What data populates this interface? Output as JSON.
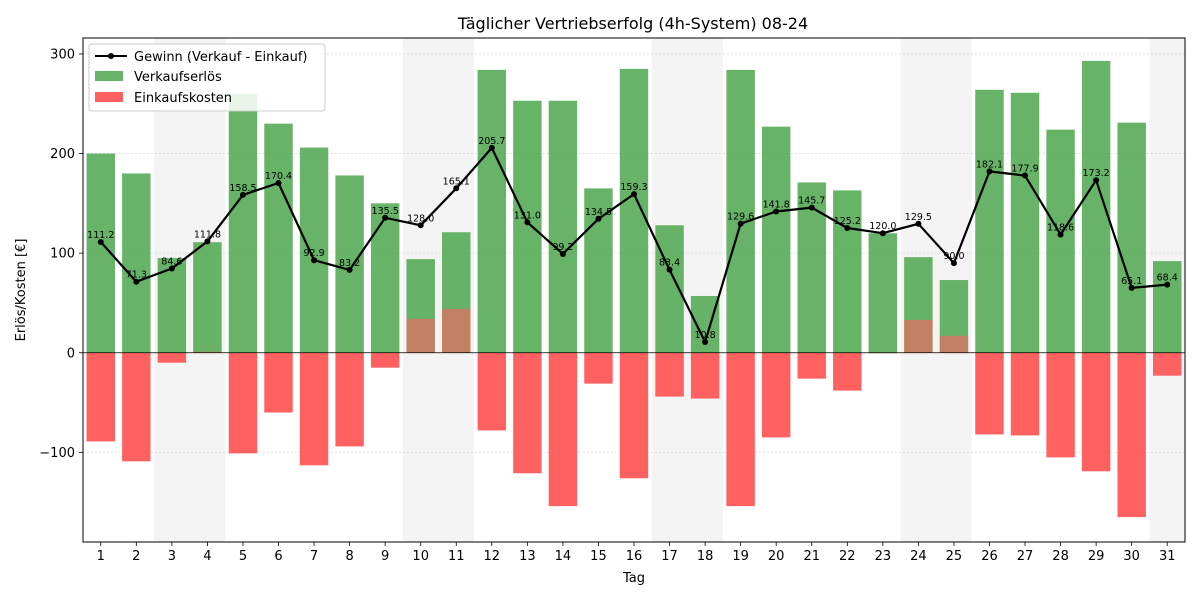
{
  "chart_data": {
    "type": "bar",
    "title": "Täglicher Vertriebserfolg (4h-System) 08-24",
    "xlabel": "Tag",
    "ylabel": "Erlös/Kosten [€]",
    "ylim": [
      -190,
      316
    ],
    "yticks": [
      -100,
      0,
      100,
      200,
      300
    ],
    "grid": "horizontal dotted",
    "legend_position": "top-left",
    "weekend_days": [
      3,
      4,
      10,
      11,
      17,
      18,
      24,
      25,
      31
    ],
    "categories": [
      "1",
      "2",
      "3",
      "4",
      "5",
      "6",
      "7",
      "8",
      "9",
      "10",
      "11",
      "12",
      "13",
      "14",
      "15",
      "16",
      "17",
      "18",
      "19",
      "20",
      "21",
      "22",
      "23",
      "24",
      "25",
      "26",
      "27",
      "28",
      "29",
      "30",
      "31"
    ],
    "series": [
      {
        "name": "Verkaufserlös",
        "kind": "bar",
        "color": "#4ca64c",
        "values": [
          200,
          180,
          95,
          111,
          260,
          230,
          206,
          178,
          150,
          94,
          121,
          284,
          253,
          253,
          165,
          285,
          128,
          57,
          284,
          227,
          171,
          163,
          120,
          96,
          73,
          264,
          261,
          224,
          293,
          231,
          92
        ]
      },
      {
        "name": "Einkaufskosten",
        "kind": "bar",
        "color": "#ff6161",
        "values": [
          -89,
          -109,
          -10,
          1,
          -101,
          -60,
          -113,
          -94,
          -15,
          34,
          44,
          -78,
          -121,
          -154,
          -31,
          -126,
          -44,
          -46,
          -154,
          -85,
          -26,
          -38,
          0,
          33,
          17,
          -82,
          -83,
          -105,
          -119,
          -165,
          -23
        ]
      },
      {
        "name": "Gewinn (Verkauf - Einkauf)",
        "kind": "line",
        "color": "#000000",
        "values": [
          111.2,
          71.3,
          84.6,
          111.8,
          158.5,
          170.4,
          92.9,
          83.2,
          135.5,
          128.0,
          165.1,
          205.7,
          131.0,
          99.2,
          134.5,
          159.3,
          83.4,
          10.8,
          129.6,
          141.8,
          145.7,
          125.2,
          120.0,
          129.5,
          90.0,
          182.1,
          177.9,
          118.6,
          173.2,
          65.1,
          68.4
        ],
        "labels": [
          "111.2",
          "71.3",
          "84.6",
          "111.8",
          "158.5",
          "170.4",
          "92.9",
          "83.2",
          "135.5",
          "128.0",
          "165.1",
          "205.7",
          "131.0",
          "99.2",
          "134.5",
          "159.3",
          "83.4",
          "10.8",
          "129.6",
          "141.8",
          "145.7",
          "125.2",
          "120.0",
          "129.5",
          "90.0",
          "182.1",
          "177.9",
          "118.6",
          "173.2",
          "65.1",
          "68.4"
        ]
      }
    ]
  },
  "legend": {
    "profit_label": "Gewinn (Verkauf - Einkauf)",
    "revenue_label": "Verkaufserlös",
    "cost_label": "Einkaufskosten"
  }
}
